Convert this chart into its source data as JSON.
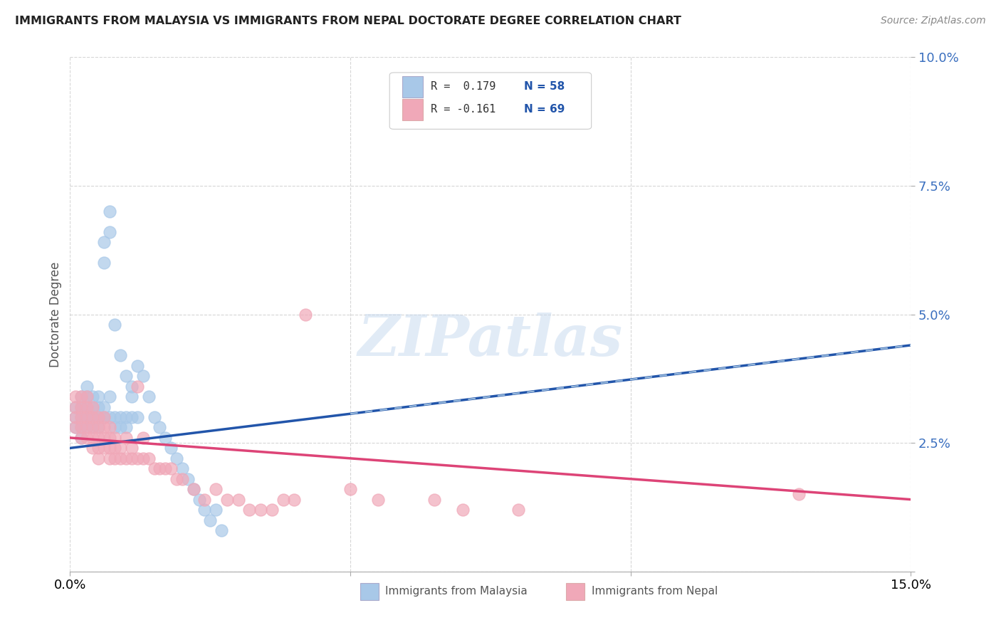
{
  "title": "IMMIGRANTS FROM MALAYSIA VS IMMIGRANTS FROM NEPAL DOCTORATE DEGREE CORRELATION CHART",
  "source": "Source: ZipAtlas.com",
  "ylabel": "Doctorate Degree",
  "xlim": [
    0.0,
    0.15
  ],
  "ylim": [
    0.0,
    0.1
  ],
  "watermark": "ZIPatlas",
  "legend_r1": "R =  0.179",
  "legend_n1": "N = 58",
  "legend_r2": "R = -0.161",
  "legend_n2": "N = 69",
  "malaysia_color": "#a8c8e8",
  "nepal_color": "#f0a8b8",
  "malaysia_line_color": "#2255aa",
  "nepal_line_color": "#dd4477",
  "malaysia_line_dashed_color": "#99bbdd",
  "background_color": "#ffffff",
  "grid_color": "#cccccc",
  "malaysia_scatter": [
    [
      0.001,
      0.032
    ],
    [
      0.001,
      0.03
    ],
    [
      0.001,
      0.028
    ],
    [
      0.002,
      0.034
    ],
    [
      0.002,
      0.032
    ],
    [
      0.002,
      0.03
    ],
    [
      0.002,
      0.028
    ],
    [
      0.002,
      0.026
    ],
    [
      0.003,
      0.036
    ],
    [
      0.003,
      0.034
    ],
    [
      0.003,
      0.032
    ],
    [
      0.003,
      0.03
    ],
    [
      0.003,
      0.028
    ],
    [
      0.004,
      0.034
    ],
    [
      0.004,
      0.032
    ],
    [
      0.004,
      0.03
    ],
    [
      0.004,
      0.028
    ],
    [
      0.005,
      0.034
    ],
    [
      0.005,
      0.032
    ],
    [
      0.005,
      0.03
    ],
    [
      0.005,
      0.028
    ],
    [
      0.006,
      0.064
    ],
    [
      0.006,
      0.06
    ],
    [
      0.006,
      0.032
    ],
    [
      0.006,
      0.03
    ],
    [
      0.007,
      0.07
    ],
    [
      0.007,
      0.066
    ],
    [
      0.007,
      0.034
    ],
    [
      0.007,
      0.03
    ],
    [
      0.008,
      0.048
    ],
    [
      0.008,
      0.03
    ],
    [
      0.008,
      0.028
    ],
    [
      0.009,
      0.042
    ],
    [
      0.009,
      0.03
    ],
    [
      0.009,
      0.028
    ],
    [
      0.01,
      0.038
    ],
    [
      0.01,
      0.03
    ],
    [
      0.01,
      0.028
    ],
    [
      0.011,
      0.036
    ],
    [
      0.011,
      0.034
    ],
    [
      0.011,
      0.03
    ],
    [
      0.012,
      0.04
    ],
    [
      0.012,
      0.03
    ],
    [
      0.013,
      0.038
    ],
    [
      0.014,
      0.034
    ],
    [
      0.015,
      0.03
    ],
    [
      0.016,
      0.028
    ],
    [
      0.017,
      0.026
    ],
    [
      0.018,
      0.024
    ],
    [
      0.019,
      0.022
    ],
    [
      0.02,
      0.02
    ],
    [
      0.021,
      0.018
    ],
    [
      0.022,
      0.016
    ],
    [
      0.023,
      0.014
    ],
    [
      0.024,
      0.012
    ],
    [
      0.025,
      0.01
    ],
    [
      0.026,
      0.012
    ],
    [
      0.027,
      0.008
    ]
  ],
  "nepal_scatter": [
    [
      0.001,
      0.034
    ],
    [
      0.001,
      0.032
    ],
    [
      0.001,
      0.03
    ],
    [
      0.001,
      0.028
    ],
    [
      0.002,
      0.034
    ],
    [
      0.002,
      0.032
    ],
    [
      0.002,
      0.03
    ],
    [
      0.002,
      0.028
    ],
    [
      0.002,
      0.026
    ],
    [
      0.003,
      0.034
    ],
    [
      0.003,
      0.032
    ],
    [
      0.003,
      0.03
    ],
    [
      0.003,
      0.028
    ],
    [
      0.003,
      0.026
    ],
    [
      0.004,
      0.032
    ],
    [
      0.004,
      0.03
    ],
    [
      0.004,
      0.028
    ],
    [
      0.004,
      0.026
    ],
    [
      0.004,
      0.024
    ],
    [
      0.005,
      0.03
    ],
    [
      0.005,
      0.028
    ],
    [
      0.005,
      0.026
    ],
    [
      0.005,
      0.024
    ],
    [
      0.005,
      0.022
    ],
    [
      0.006,
      0.03
    ],
    [
      0.006,
      0.028
    ],
    [
      0.006,
      0.026
    ],
    [
      0.006,
      0.024
    ],
    [
      0.007,
      0.028
    ],
    [
      0.007,
      0.026
    ],
    [
      0.007,
      0.024
    ],
    [
      0.007,
      0.022
    ],
    [
      0.008,
      0.026
    ],
    [
      0.008,
      0.024
    ],
    [
      0.008,
      0.022
    ],
    [
      0.009,
      0.024
    ],
    [
      0.009,
      0.022
    ],
    [
      0.01,
      0.026
    ],
    [
      0.01,
      0.022
    ],
    [
      0.011,
      0.024
    ],
    [
      0.011,
      0.022
    ],
    [
      0.012,
      0.036
    ],
    [
      0.012,
      0.022
    ],
    [
      0.013,
      0.026
    ],
    [
      0.013,
      0.022
    ],
    [
      0.014,
      0.022
    ],
    [
      0.015,
      0.02
    ],
    [
      0.016,
      0.02
    ],
    [
      0.017,
      0.02
    ],
    [
      0.018,
      0.02
    ],
    [
      0.019,
      0.018
    ],
    [
      0.02,
      0.018
    ],
    [
      0.022,
      0.016
    ],
    [
      0.024,
      0.014
    ],
    [
      0.026,
      0.016
    ],
    [
      0.028,
      0.014
    ],
    [
      0.03,
      0.014
    ],
    [
      0.032,
      0.012
    ],
    [
      0.034,
      0.012
    ],
    [
      0.036,
      0.012
    ],
    [
      0.038,
      0.014
    ],
    [
      0.04,
      0.014
    ],
    [
      0.042,
      0.05
    ],
    [
      0.05,
      0.016
    ],
    [
      0.055,
      0.014
    ],
    [
      0.065,
      0.014
    ],
    [
      0.07,
      0.012
    ],
    [
      0.08,
      0.012
    ],
    [
      0.13,
      0.015
    ]
  ],
  "malaysia_trend": [
    0.0,
    0.15
  ],
  "malaysia_trend_y": [
    0.024,
    0.044
  ],
  "nepal_trend": [
    0.0,
    0.15
  ],
  "nepal_trend_y": [
    0.026,
    0.014
  ]
}
